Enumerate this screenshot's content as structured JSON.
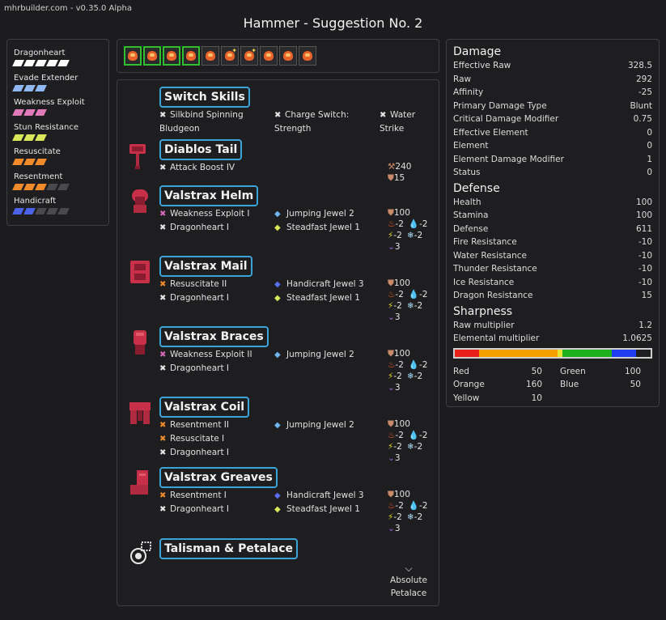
{
  "brand": "mhrbuilder.com - v0.35.0 Alpha",
  "title": "Hammer - Suggestion No. 2",
  "skills": [
    {
      "name": "Dragonheart",
      "filled": 5,
      "total": 5,
      "color": "#ffffff"
    },
    {
      "name": "Evade Extender",
      "filled": 3,
      "total": 3,
      "color": "#8fb8f2"
    },
    {
      "name": "Weakness Exploit",
      "filled": 3,
      "total": 3,
      "color": "#e07ab8"
    },
    {
      "name": "Stun Resistance",
      "filled": 3,
      "total": 3,
      "color": "#d8e85a"
    },
    {
      "name": "Resuscitate",
      "filled": 3,
      "total": 3,
      "color": "#f08a2a"
    },
    {
      "name": "Resentment",
      "filled": 3,
      "total": 5,
      "color": "#f08a2a"
    },
    {
      "name": "Handicraft",
      "filled": 2,
      "total": 5,
      "color": "#4a63e8"
    }
  ],
  "decorations": [
    {
      "green": true,
      "star": false
    },
    {
      "green": true,
      "star": false
    },
    {
      "green": true,
      "star": false
    },
    {
      "green": true,
      "star": false
    },
    {
      "green": false,
      "star": false
    },
    {
      "green": false,
      "star": true
    },
    {
      "green": false,
      "star": true
    },
    {
      "green": false,
      "star": false
    },
    {
      "green": false,
      "star": false
    },
    {
      "green": false,
      "star": false
    }
  ],
  "equipment": {
    "switch_skills": {
      "name": "Switch Skills",
      "items": [
        "Silkbind Spinning Bludgeon",
        "Charge Switch: Strength",
        "Water Strike"
      ]
    },
    "weapon": {
      "name": "Diablos Tail",
      "skill": "Attack Boost IV",
      "attack": "240",
      "defense": "15"
    },
    "armor": [
      {
        "name": "Valstrax Helm",
        "skills": [
          {
            "mark": "p",
            "text": "Weakness Exploit I"
          },
          {
            "mark": "w",
            "text": "Dragonheart I"
          }
        ],
        "jewels": [
          {
            "color": "blue",
            "text": "Jumping Jewel 2"
          },
          {
            "color": "yel",
            "text": "Steadfast Jewel 1"
          }
        ],
        "defense": "100",
        "fire": "-2",
        "water": "-2",
        "thunder": "-2",
        "ice": "-2",
        "dragon": "3"
      },
      {
        "name": "Valstrax Mail",
        "skills": [
          {
            "mark": "o",
            "text": "Resuscitate II"
          },
          {
            "mark": "w",
            "text": "Dragonheart I"
          }
        ],
        "jewels": [
          {
            "color": "navy",
            "text": "Handicraft Jewel 3"
          },
          {
            "color": "yel",
            "text": "Steadfast Jewel 1"
          }
        ],
        "defense": "100",
        "fire": "-2",
        "water": "-2",
        "thunder": "-2",
        "ice": "-2",
        "dragon": "3"
      },
      {
        "name": "Valstrax Braces",
        "skills": [
          {
            "mark": "p",
            "text": "Weakness Exploit II"
          },
          {
            "mark": "w",
            "text": "Dragonheart I"
          }
        ],
        "jewels": [
          {
            "color": "blue",
            "text": "Jumping Jewel 2"
          }
        ],
        "defense": "100",
        "fire": "-2",
        "water": "-2",
        "thunder": "-2",
        "ice": "-2",
        "dragon": "3"
      },
      {
        "name": "Valstrax Coil",
        "skills": [
          {
            "mark": "o",
            "text": "Resentment II"
          },
          {
            "mark": "o",
            "text": "Resuscitate I"
          },
          {
            "mark": "w",
            "text": "Dragonheart I"
          }
        ],
        "jewels": [
          {
            "color": "blue",
            "text": "Jumping Jewel 2"
          }
        ],
        "defense": "100",
        "fire": "-2",
        "water": "-2",
        "thunder": "-2",
        "ice": "-2",
        "dragon": "3"
      },
      {
        "name": "Valstrax Greaves",
        "skills": [
          {
            "mark": "o",
            "text": "Resentment I"
          },
          {
            "mark": "w",
            "text": "Dragonheart I"
          }
        ],
        "jewels": [
          {
            "color": "navy",
            "text": "Handicraft Jewel 3"
          },
          {
            "color": "yel",
            "text": "Steadfast Jewel 1"
          }
        ],
        "defense": "100",
        "fire": "-2",
        "water": "-2",
        "thunder": "-2",
        "ice": "-2",
        "dragon": "3"
      }
    ],
    "talisman": {
      "name": "Talisman & Petalace",
      "petalace": "Absolute Petalace"
    }
  },
  "stats": {
    "damage_title": "Damage",
    "damage": [
      {
        "label": "Effective Raw",
        "value": "328.5"
      },
      {
        "label": "Raw",
        "value": "292"
      },
      {
        "label": "Affinity",
        "value": "-25"
      },
      {
        "label": "Primary Damage Type",
        "value": "Blunt"
      },
      {
        "label": "Critical Damage Modifier",
        "value": "0.75"
      },
      {
        "label": "Effective Element",
        "value": "0"
      },
      {
        "label": "Element",
        "value": "0"
      },
      {
        "label": "Element Damage Modifier",
        "value": "1"
      },
      {
        "label": "Status",
        "value": "0"
      }
    ],
    "defense_title": "Defense",
    "defense": [
      {
        "label": "Health",
        "value": "100"
      },
      {
        "label": "Stamina",
        "value": "100"
      },
      {
        "label": "Defense",
        "value": "611"
      },
      {
        "label": "Fire Resistance",
        "value": "-10"
      },
      {
        "label": "Water Resistance",
        "value": "-10"
      },
      {
        "label": "Thunder Resistance",
        "value": "-10"
      },
      {
        "label": "Ice Resistance",
        "value": "-10"
      },
      {
        "label": "Dragon Resistance",
        "value": "15"
      }
    ],
    "sharpness_title": "Sharpness",
    "sharpness": [
      {
        "label": "Raw multiplier",
        "value": "1.2"
      },
      {
        "label": "Elemental multiplier",
        "value": "1.0625"
      }
    ],
    "sharpness_bar": [
      {
        "name": "Red",
        "value": 50,
        "color": "#e8201c"
      },
      {
        "name": "Orange",
        "value": 160,
        "color": "#f5a000"
      },
      {
        "name": "Yellow",
        "value": 10,
        "color": "#e6e632"
      },
      {
        "name": "Green",
        "value": 100,
        "color": "#1eb01e"
      },
      {
        "name": "Blue",
        "value": 50,
        "color": "#1e3cf0"
      }
    ],
    "sharpness_max": 400,
    "sharpness_values": {
      "red_label": "Red",
      "red": "50",
      "green_label": "Green",
      "green": "100",
      "orange_label": "Orange",
      "orange": "160",
      "blue_label": "Blue",
      "blue": "50",
      "yellow_label": "Yellow",
      "yellow": "10"
    }
  }
}
